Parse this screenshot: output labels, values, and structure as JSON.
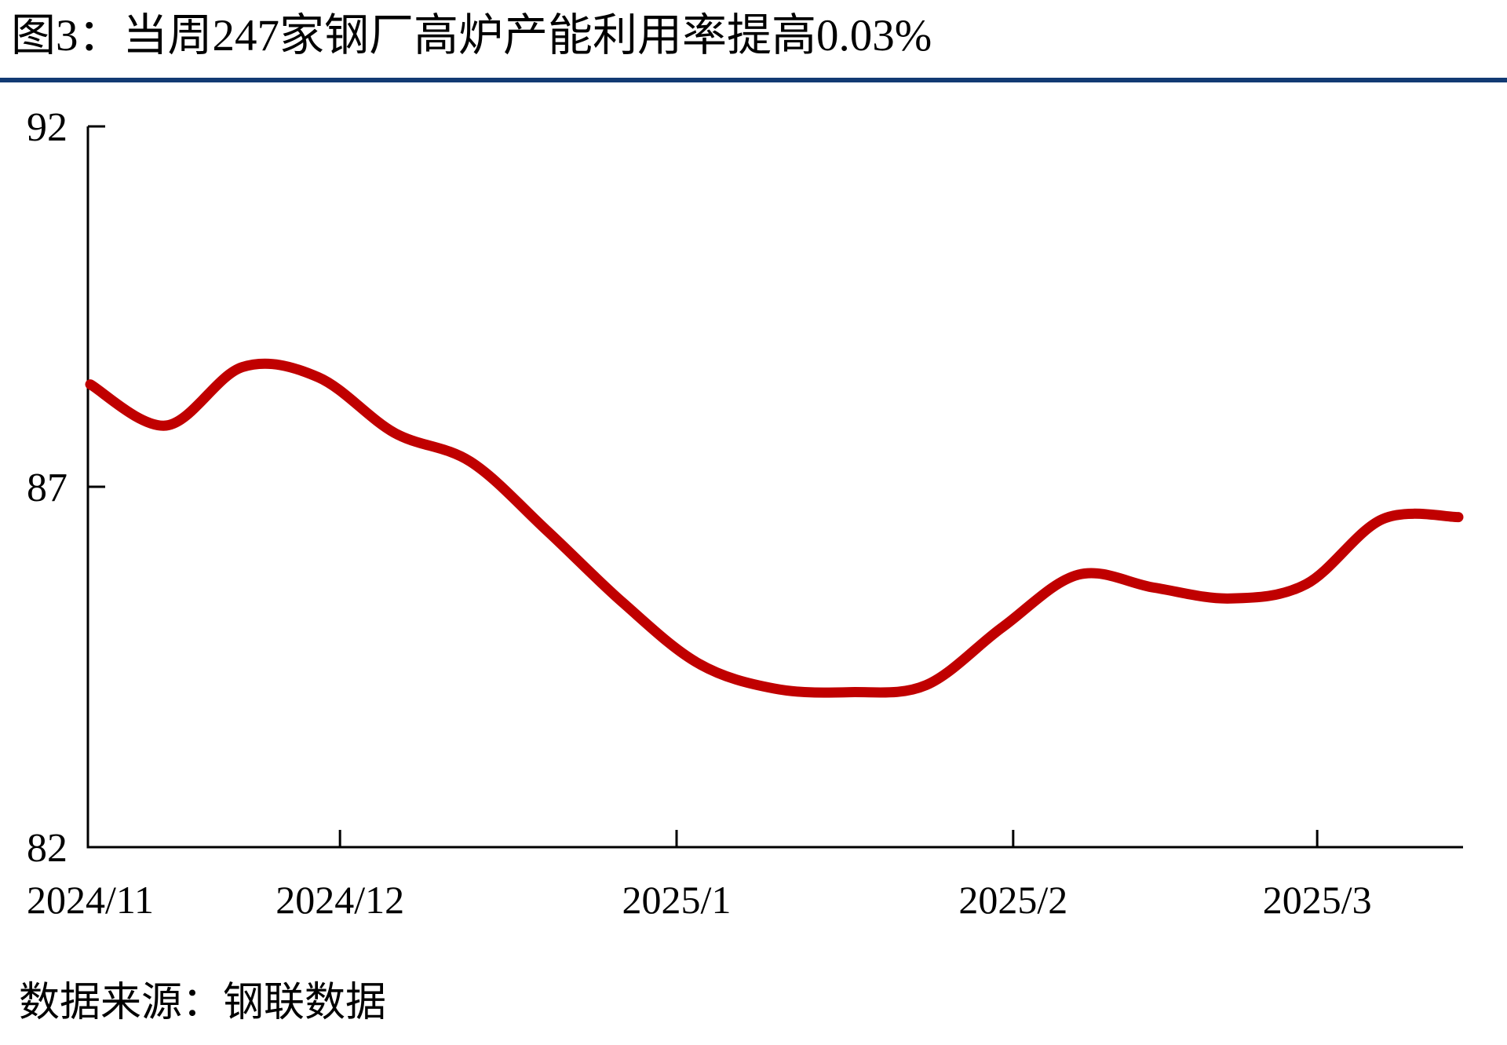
{
  "source_note": "数据来源：钢联数据",
  "colors": {
    "line": "#C00000",
    "divider": "#123A73",
    "axis": "#000000",
    "text": "#000000",
    "background": "#FFFFFF"
  },
  "chart_data": {
    "type": "line",
    "title": "图3：当周247家钢厂高炉产能利用率提高0.03%",
    "xlabel": "",
    "ylabel": "",
    "ylim": [
      82,
      92
    ],
    "yticks": [
      92,
      87,
      82
    ],
    "grid": false,
    "legend": "none",
    "smooth": true,
    "line_color": "#C00000",
    "xticks": [
      {
        "label": "2024/11",
        "date": "2024-11-08",
        "tick": false
      },
      {
        "label": "2024/12",
        "date": "2024-12-01",
        "tick": true
      },
      {
        "label": "2025/1",
        "date": "2025-01-01",
        "tick": true
      },
      {
        "label": "2025/2",
        "date": "2025-02-01",
        "tick": true
      },
      {
        "label": "2025/3",
        "date": "2025-03-01",
        "tick": true
      }
    ],
    "series": [
      {
        "x": [
          "2024-11-08",
          "2024-11-15",
          "2024-11-22",
          "2024-11-29",
          "2024-12-06",
          "2024-12-13",
          "2024-12-20",
          "2024-12-27",
          "2025-01-03",
          "2025-01-10",
          "2025-01-17",
          "2025-01-24",
          "2025-01-31",
          "2025-02-07",
          "2025-02-14",
          "2025-02-21",
          "2025-02-28",
          "2025-03-07",
          "2025-03-14"
        ],
        "values": [
          88.42,
          87.85,
          88.66,
          88.52,
          87.75,
          87.35,
          86.4,
          85.4,
          84.55,
          84.2,
          84.15,
          84.25,
          85.05,
          85.78,
          85.6,
          85.45,
          85.65,
          86.55,
          86.58
        ]
      }
    ]
  }
}
